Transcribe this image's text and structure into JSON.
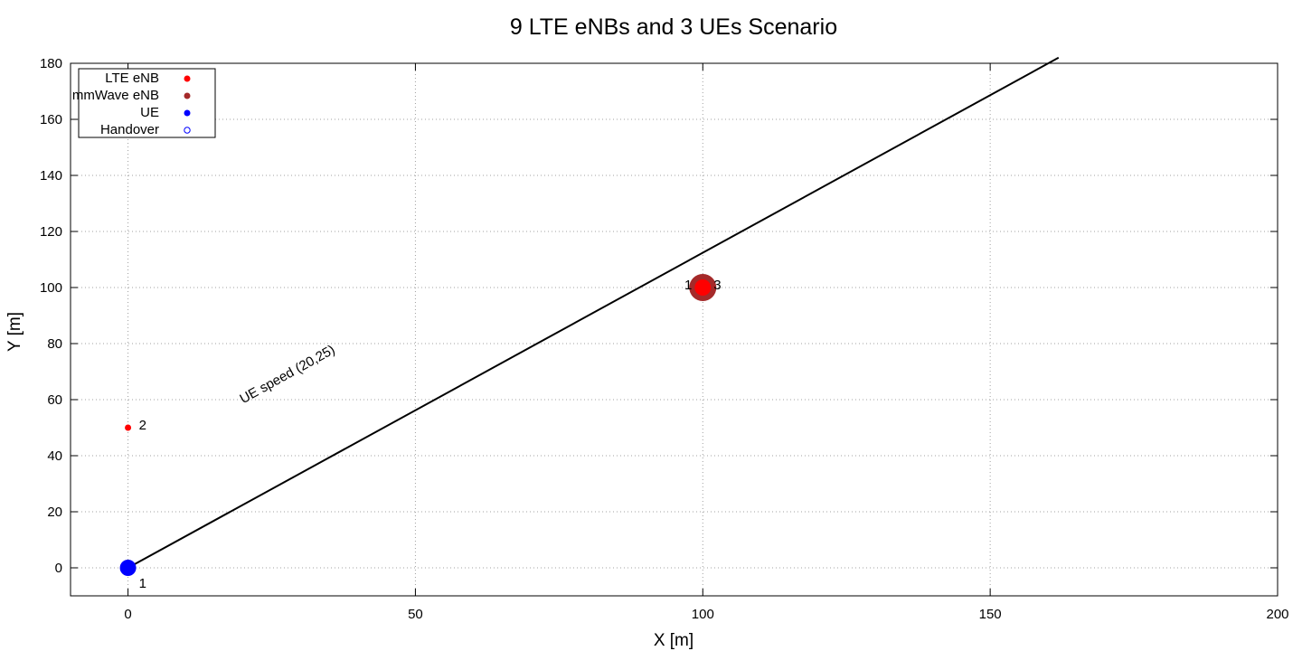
{
  "chart_data": {
    "type": "scatter",
    "title": "9 LTE eNBs and 3 UEs Scenario",
    "xlabel": "X [m]",
    "ylabel": "Y [m]",
    "xlim": [
      -10,
      200
    ],
    "ylim": [
      -10,
      180
    ],
    "xticks": [
      0,
      50,
      100,
      150,
      200
    ],
    "yticks": [
      0,
      20,
      40,
      60,
      80,
      100,
      120,
      140,
      160,
      180
    ],
    "grid": true,
    "legend_position": "top-left",
    "legend": [
      {
        "label": "LTE eNB",
        "marker": "filled-circle",
        "color": "#ff0000"
      },
      {
        "label": "mmWave eNB",
        "marker": "filled-circle",
        "color": "#a52a2a"
      },
      {
        "label": "UE",
        "marker": "filled-circle",
        "color": "#0000ff"
      },
      {
        "label": "Handover",
        "marker": "open-circle",
        "color": "#0000ff"
      }
    ],
    "series": [
      {
        "name": "LTE eNB",
        "color": "#ff0000",
        "points": [
          {
            "x": 0,
            "y": 50,
            "label": "2"
          },
          {
            "x": 100,
            "y": 100,
            "label": "3"
          }
        ]
      },
      {
        "name": "mmWave eNB",
        "color": "#a52a2a",
        "points": [
          {
            "x": 100,
            "y": 100,
            "label": "1"
          }
        ]
      },
      {
        "name": "UE",
        "color": "#0000ff",
        "points": [
          {
            "x": 0,
            "y": 0,
            "label": "1"
          }
        ]
      },
      {
        "name": "Handover",
        "color": "#0000ff",
        "points": []
      }
    ],
    "trajectory": {
      "from": [
        0,
        0
      ],
      "to": [
        161.9,
        182
      ],
      "color": "#000000"
    },
    "annotation": {
      "text": "UE speed (20,25)",
      "x": 20,
      "y": 58.5,
      "rotation_deg": -29
    }
  }
}
